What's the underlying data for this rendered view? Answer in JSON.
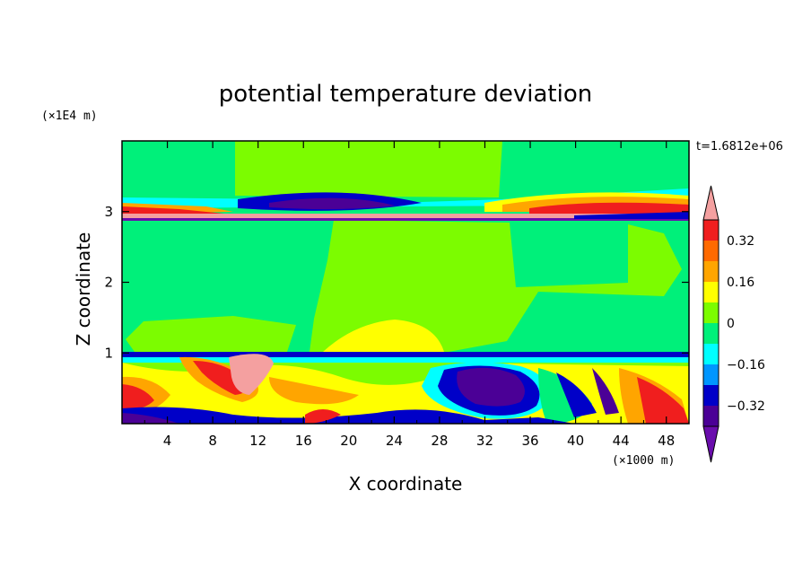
{
  "chart_data": {
    "type": "heatmap",
    "title": "potential temperature deviation",
    "xlabel": "X coordinate",
    "ylabel": "Z coordinate",
    "x_unit": "(×1000 m)",
    "y_unit": "(×1E4 m)",
    "time_label": "t=1.6812e+06",
    "xlim": [
      0,
      50
    ],
    "ylim": [
      0,
      4
    ],
    "x_ticks": [
      "4",
      "8",
      "12",
      "16",
      "20",
      "24",
      "28",
      "32",
      "36",
      "40",
      "44",
      "48"
    ],
    "y_ticks": [
      "1",
      "2",
      "3"
    ],
    "colorbar": {
      "labels": [
        "0.32",
        "0.16",
        "0",
        "−0.16",
        "−0.32"
      ],
      "label_values": [
        0.32,
        0.16,
        0,
        -0.16,
        -0.32
      ],
      "levels": [
        0.4,
        0.32,
        0.24,
        0.16,
        0.08,
        0,
        -0.08,
        -0.16,
        -0.24,
        -0.32,
        -0.4
      ],
      "colors": [
        "#f01e1e",
        "#ff6a00",
        "#ffa500",
        "#ffff00",
        "#7cfc00",
        "#00f07a",
        "#00ffff",
        "#0096ff",
        "#0000c8",
        "#4b0096"
      ],
      "over_color": "#f4a0a0",
      "under_color": "#6a0dad"
    },
    "grid": false
  }
}
